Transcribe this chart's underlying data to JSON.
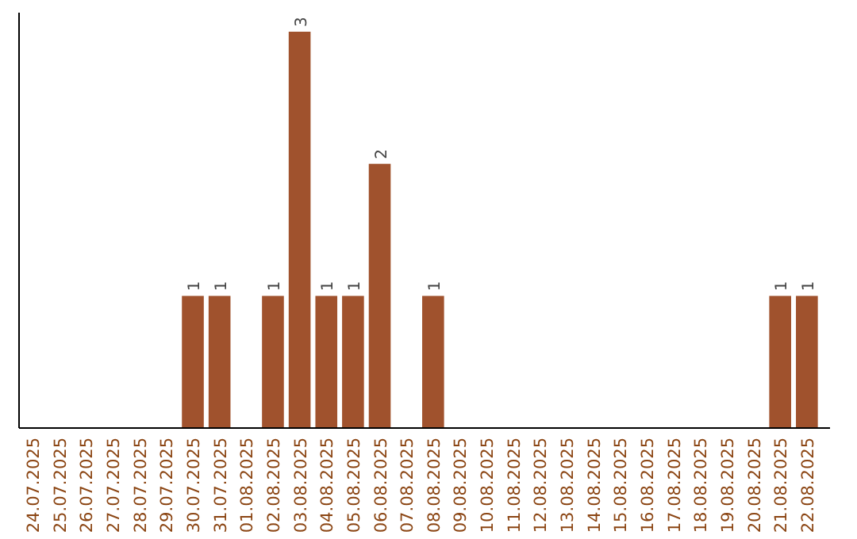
{
  "chart_data": {
    "type": "bar",
    "categories": [
      "24.07.2025",
      "25.07.2025",
      "26.07.2025",
      "27.07.2025",
      "28.07.2025",
      "29.07.2025",
      "30.07.2025",
      "31.07.2025",
      "01.08.2025",
      "02.08.2025",
      "03.08.2025",
      "04.08.2025",
      "05.08.2025",
      "06.08.2025",
      "07.08.2025",
      "08.08.2025",
      "09.08.2025",
      "10.08.2025",
      "11.08.2025",
      "12.08.2025",
      "13.08.2025",
      "14.08.2025",
      "15.08.2025",
      "16.08.2025",
      "17.08.2025",
      "18.08.2025",
      "19.08.2025",
      "20.08.2025",
      "21.08.2025",
      "22.08.2025"
    ],
    "values": [
      0,
      0,
      0,
      0,
      0,
      0,
      1,
      1,
      0,
      1,
      3,
      1,
      1,
      2,
      0,
      1,
      0,
      0,
      0,
      0,
      0,
      0,
      0,
      0,
      0,
      0,
      0,
      0,
      1,
      1
    ],
    "value_labels": [
      null,
      null,
      null,
      null,
      null,
      null,
      "1",
      "1",
      null,
      "1",
      "3",
      "1",
      "1",
      "2",
      null,
      "1",
      null,
      null,
      null,
      null,
      null,
      null,
      null,
      null,
      null,
      null,
      null,
      null,
      "1",
      "1"
    ],
    "color": "#a0522d",
    "ylim": [
      0,
      3
    ],
    "tick_labels": "x"
  }
}
